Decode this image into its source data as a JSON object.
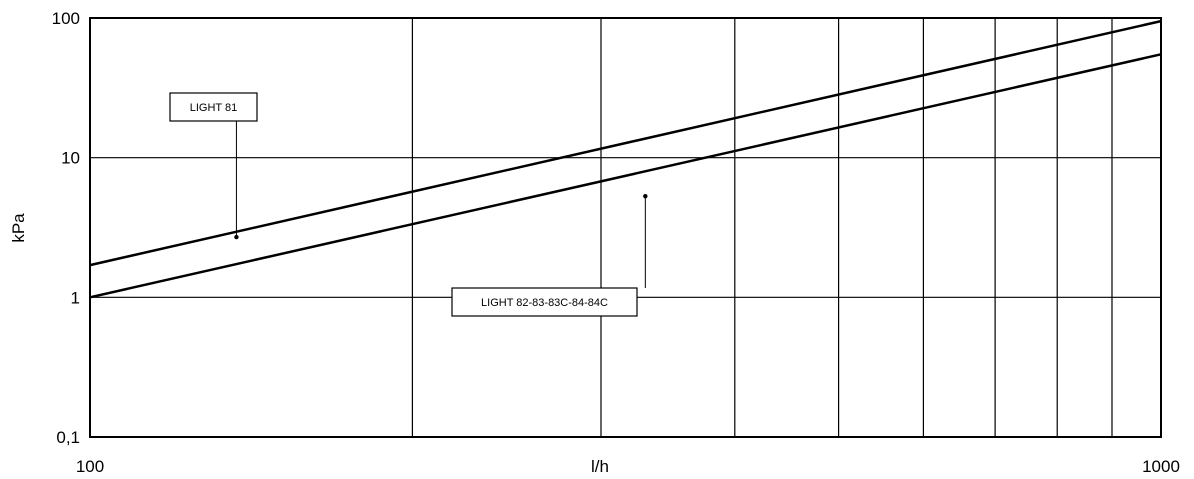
{
  "chart_data": {
    "type": "line",
    "title": "",
    "xlabel": "l/h",
    "ylabel": "kPa",
    "xscale": "log",
    "yscale": "log",
    "xlim": [
      100,
      1000
    ],
    "ylim": [
      0.1,
      100
    ],
    "grid": true,
    "x_tick_labels": [
      {
        "value": 100,
        "label": "100"
      },
      {
        "value": 1000,
        "label": "1000"
      }
    ],
    "y_tick_labels": [
      {
        "value": 0.1,
        "label": "0,1"
      },
      {
        "value": 1,
        "label": "1"
      },
      {
        "value": 10,
        "label": "10"
      },
      {
        "value": 100,
        "label": "100"
      }
    ],
    "x_gridlines": [
      200,
      300,
      400,
      500,
      600,
      700,
      800,
      900
    ],
    "y_gridlines": [
      1,
      10
    ],
    "series": [
      {
        "name": "LIGHT 81",
        "color": "#000000",
        "points": [
          [
            100,
            1.7
          ],
          [
            1000,
            95
          ]
        ],
        "callout_at": [
          137,
          2.7
        ]
      },
      {
        "name": "LIGHT 82-83-83C-84-84C",
        "color": "#000000",
        "points": [
          [
            100,
            1.0
          ],
          [
            1000,
            55
          ]
        ],
        "callout_at": [
          330,
          5.3
        ]
      }
    ]
  }
}
